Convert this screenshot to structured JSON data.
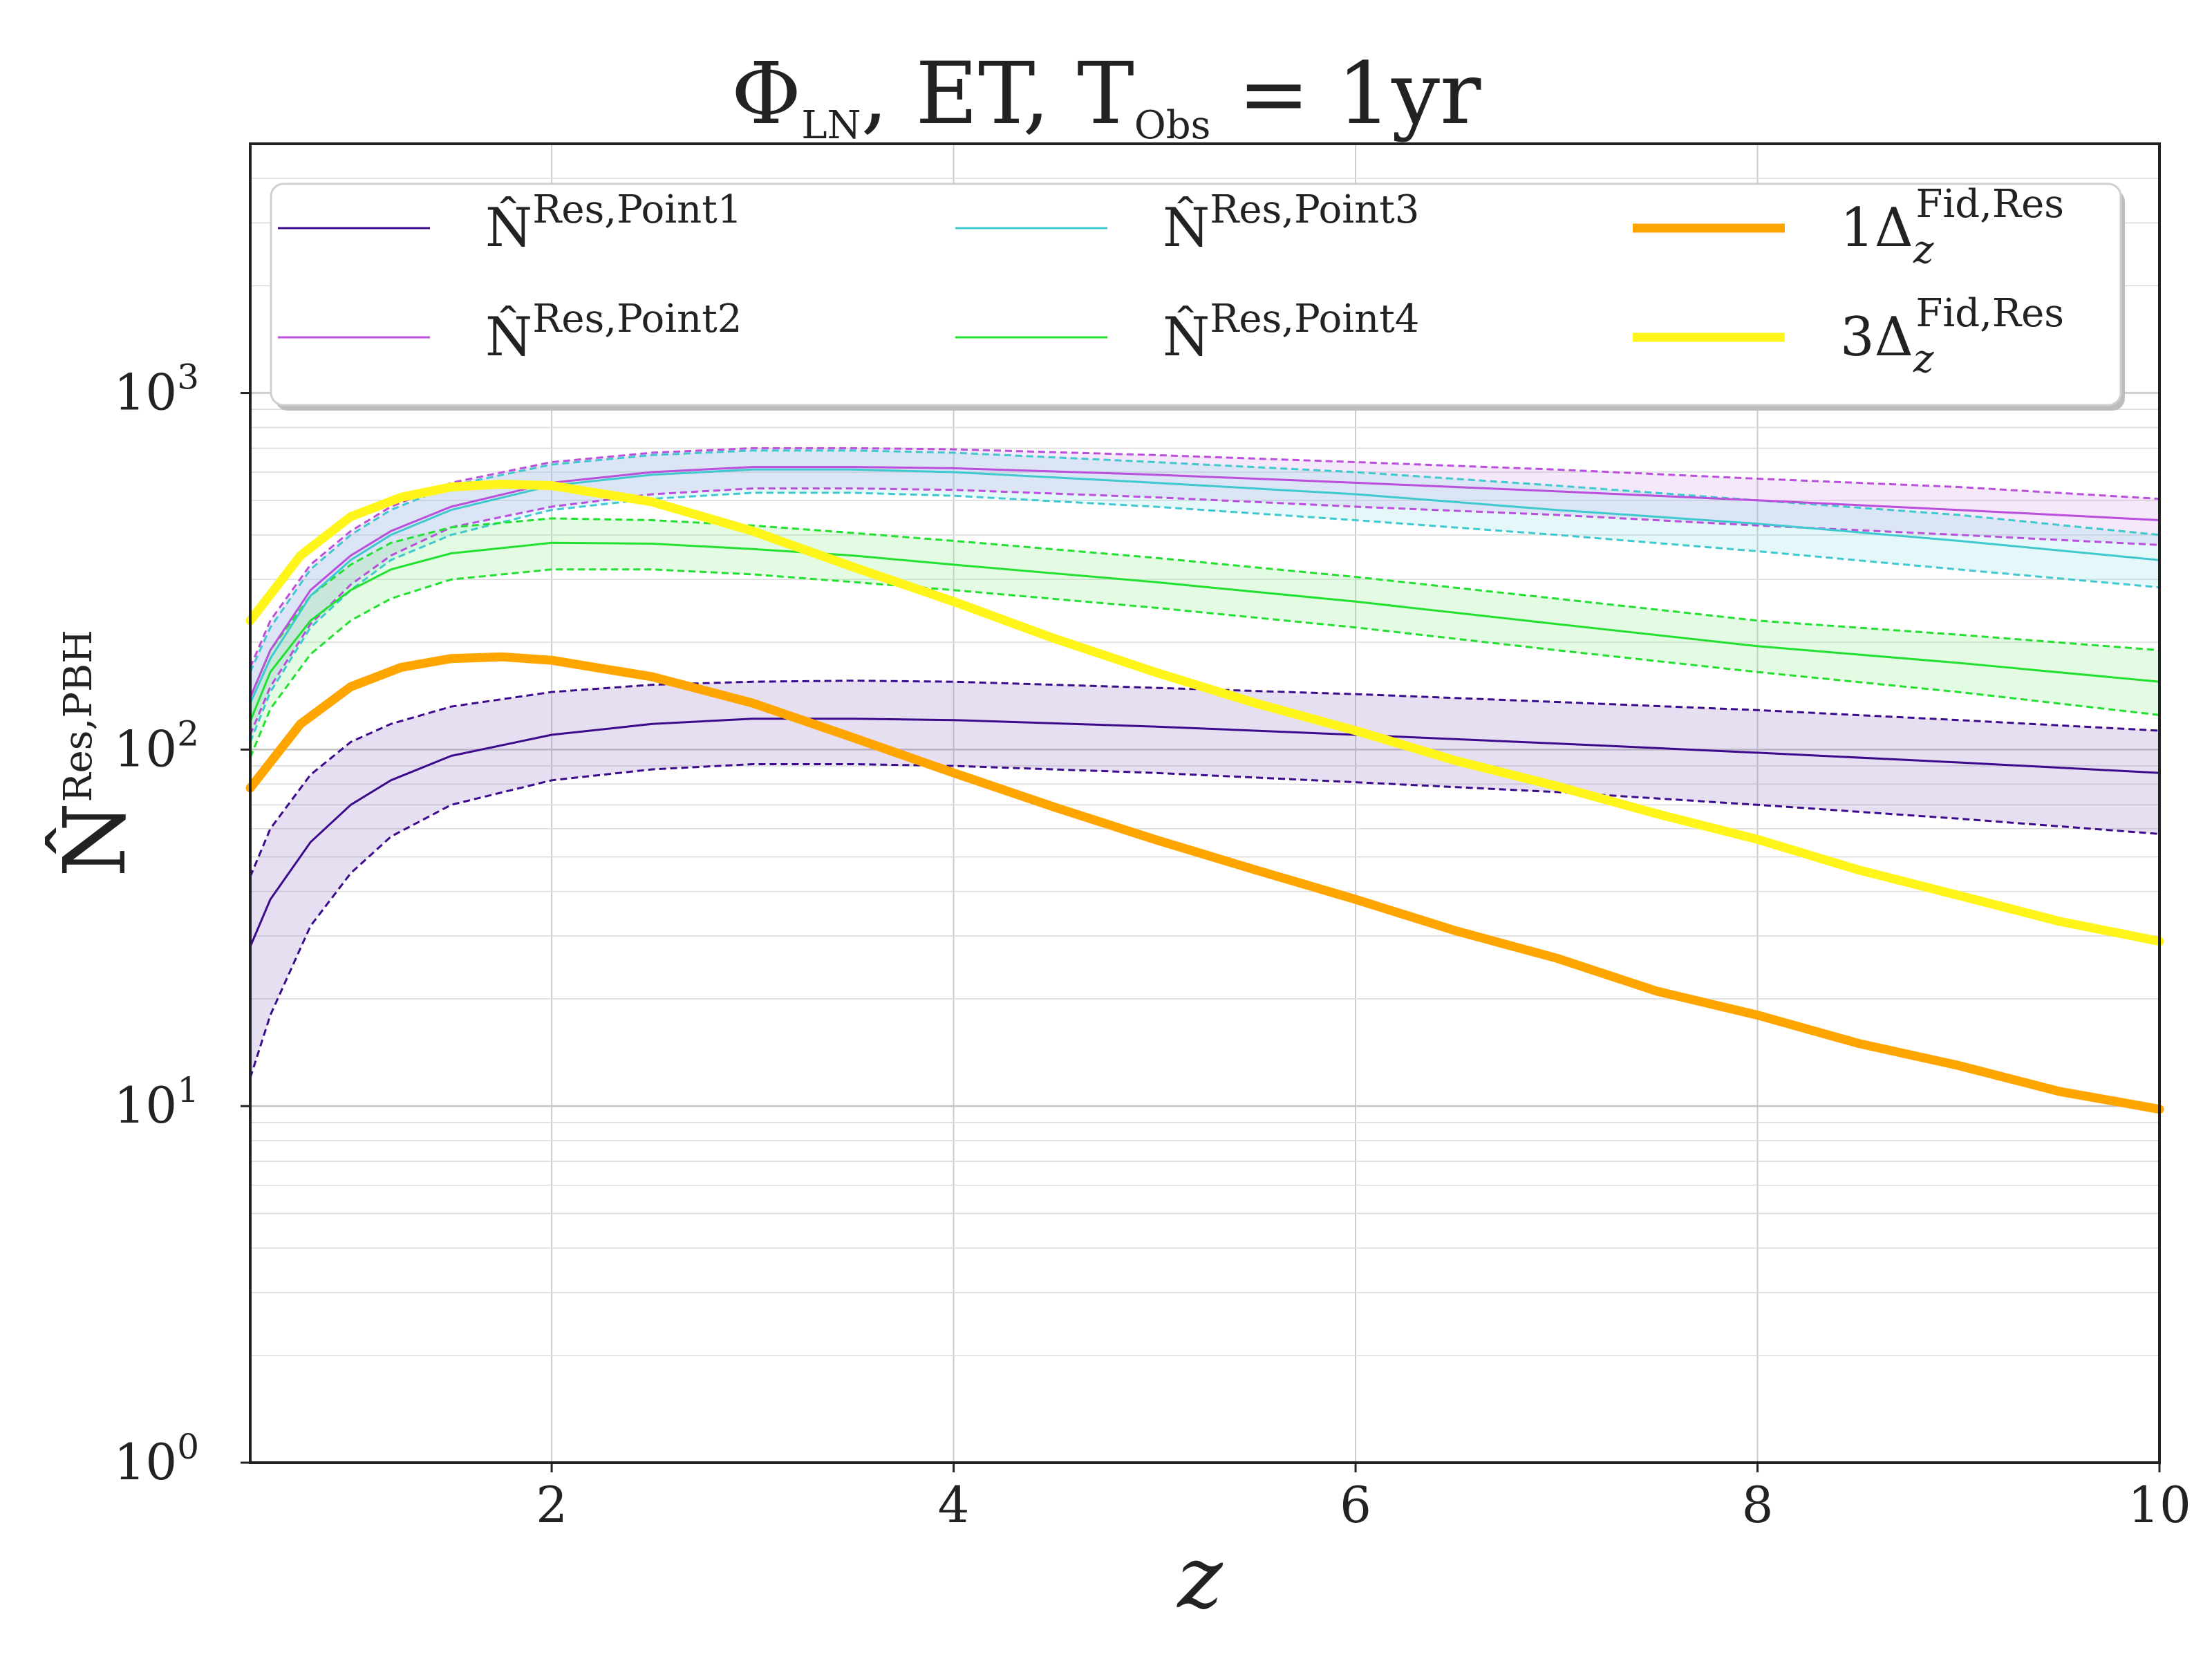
{
  "chart_data": {
    "type": "line",
    "title": {
      "main": "Φ",
      "sub1": "LN",
      "mid": ", ET, T",
      "sub2": "Obs",
      "end": " = 1yr"
    },
    "xlabel": "z",
    "ylabel": {
      "base": "N̂",
      "sup": "Res,PBH"
    },
    "y_scale": "log",
    "xlim": [
      0.5,
      10
    ],
    "ylim": [
      1,
      5000
    ],
    "x_ticks": [
      2,
      4,
      6,
      8,
      10
    ],
    "y_ticks": [
      {
        "value": 1,
        "base": "10",
        "exp": "0"
      },
      {
        "value": 10,
        "base": "10",
        "exp": "1"
      },
      {
        "value": 100,
        "base": "10",
        "exp": "2"
      },
      {
        "value": 1000,
        "base": "10",
        "exp": "3"
      }
    ],
    "grid": true,
    "legend": {
      "location": "top",
      "columns": 3
    },
    "series": [
      {
        "name": "N̂",
        "name_sup": "Res,Point1",
        "color": "#3b0b8c",
        "width": 3,
        "style": "solid",
        "x": [
          0.5,
          0.6,
          0.8,
          1.0,
          1.2,
          1.5,
          2.0,
          2.5,
          3.0,
          3.5,
          4.0,
          5.0,
          6.0,
          7.0,
          8.0,
          9.0,
          10.0
        ],
        "y": [
          28,
          38,
          55,
          70,
          82,
          96,
          110,
          118,
          122,
          122,
          121,
          116,
          110,
          104,
          98,
          92,
          86
        ],
        "band": {
          "fill": "rgba(139, 110, 190, 0.22)",
          "upper": [
            44,
            60,
            85,
            105,
            118,
            132,
            145,
            152,
            155,
            156,
            155,
            149,
            143,
            136,
            129,
            121,
            113
          ],
          "lower": [
            12,
            18,
            32,
            45,
            57,
            70,
            82,
            88,
            91,
            91,
            90,
            86,
            81,
            76,
            70,
            64,
            58
          ]
        }
      },
      {
        "name": "N̂",
        "name_sup": "Res,Point2",
        "color": "#b94fdb",
        "width": 3,
        "style": "solid",
        "x": [
          0.5,
          0.6,
          0.8,
          1.0,
          1.2,
          1.5,
          2.0,
          2.5,
          3.0,
          3.5,
          4.0,
          5.0,
          6.0,
          7.0,
          8.0,
          9.0,
          10.0
        ],
        "y": [
          140,
          190,
          280,
          350,
          410,
          480,
          560,
          600,
          620,
          620,
          615,
          590,
          560,
          530,
          500,
          470,
          440
        ],
        "band": {
          "fill": "rgba(210, 150, 230, 0.22)",
          "upper": [
            170,
            230,
            330,
            410,
            480,
            560,
            640,
            680,
            700,
            700,
            695,
            670,
            640,
            610,
            575,
            545,
            505
          ],
          "lower": [
            110,
            150,
            225,
            290,
            350,
            420,
            480,
            520,
            540,
            540,
            535,
            510,
            480,
            455,
            425,
            400,
            375
          ]
        }
      },
      {
        "name": "N̂",
        "name_sup": "Res,Point3",
        "color": "#3fc9cf",
        "width": 3,
        "style": "solid",
        "x": [
          0.5,
          0.6,
          0.8,
          1.0,
          1.2,
          1.5,
          2.0,
          2.5,
          3.0,
          3.5,
          4.0,
          5.0,
          6.0,
          7.0,
          8.0,
          9.0,
          10.0
        ],
        "y": [
          135,
          180,
          270,
          340,
          400,
          470,
          550,
          590,
          610,
          610,
          600,
          560,
          520,
          470,
          430,
          385,
          340
        ],
        "band": {
          "fill": "rgba(120, 220, 225, 0.2)",
          "upper": [
            165,
            220,
            320,
            400,
            470,
            550,
            630,
            670,
            690,
            690,
            680,
            640,
            600,
            550,
            500,
            455,
            400
          ],
          "lower": [
            105,
            145,
            220,
            280,
            340,
            400,
            470,
            505,
            525,
            525,
            515,
            480,
            440,
            400,
            360,
            320,
            285
          ]
        }
      },
      {
        "name": "N̂",
        "name_sup": "Res,Point4",
        "color": "#22e030",
        "width": 3,
        "style": "solid",
        "x": [
          0.5,
          0.6,
          0.8,
          1.0,
          1.2,
          1.5,
          2.0,
          2.5,
          3.0,
          3.5,
          4.0,
          5.0,
          6.0,
          7.0,
          8.0,
          9.0,
          10.0
        ],
        "y": [
          120,
          165,
          230,
          280,
          320,
          355,
          380,
          378,
          365,
          350,
          330,
          295,
          260,
          225,
          195,
          175,
          155
        ],
        "band": {
          "fill": "rgba(140, 240, 140, 0.25)",
          "upper": [
            140,
            190,
            270,
            330,
            380,
            420,
            445,
            440,
            425,
            405,
            385,
            345,
            305,
            265,
            230,
            210,
            190
          ],
          "lower": [
            95,
            130,
            185,
            230,
            265,
            300,
            320,
            320,
            310,
            295,
            280,
            250,
            220,
            190,
            165,
            145,
            125
          ]
        }
      },
      {
        "name": "1Δ",
        "name_sub": "z",
        "name_sup": "Fid,Res",
        "color": "#ffa500",
        "width": 13,
        "style": "solid",
        "x": [
          0.5,
          0.75,
          1.0,
          1.25,
          1.5,
          1.75,
          2.0,
          2.5,
          3.0,
          3.5,
          4.0,
          4.5,
          5.0,
          5.5,
          6.0,
          6.5,
          7.0,
          7.5,
          8.0,
          8.5,
          9.0,
          9.5,
          10.0
        ],
        "y": [
          78,
          118,
          150,
          170,
          180,
          182,
          178,
          160,
          135,
          108,
          86,
          69,
          56,
          46,
          38,
          31,
          26,
          21,
          18,
          15,
          13,
          11,
          9.8
        ]
      },
      {
        "name": "3Δ",
        "name_sub": "z",
        "name_sup": "Fid,Res",
        "color": "#fff51a",
        "width": 13,
        "style": "solid",
        "x": [
          0.5,
          0.75,
          1.0,
          1.25,
          1.5,
          1.75,
          2.0,
          2.5,
          3.0,
          3.5,
          4.0,
          4.5,
          5.0,
          5.5,
          6.0,
          6.5,
          7.0,
          7.5,
          8.0,
          8.5,
          9.0,
          9.5,
          10.0
        ],
        "y": [
          230,
          350,
          450,
          510,
          545,
          555,
          550,
          495,
          410,
          325,
          260,
          205,
          165,
          135,
          113,
          93,
          79,
          66,
          56,
          46,
          39,
          33,
          29
        ]
      }
    ]
  }
}
